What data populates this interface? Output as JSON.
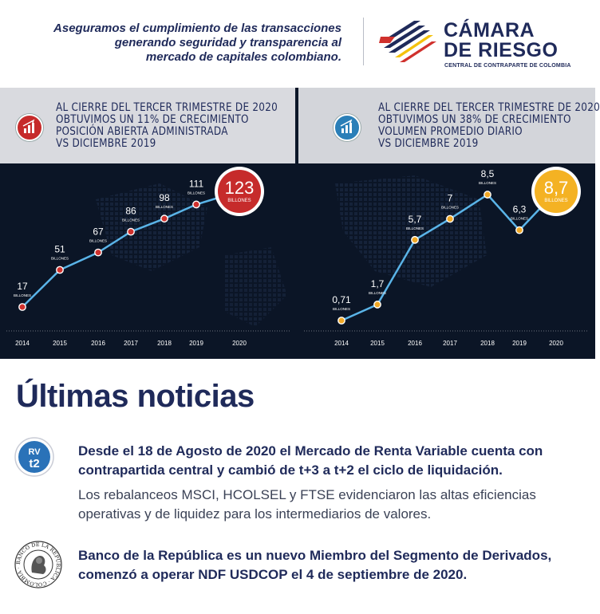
{
  "header": {
    "tagline_lines": [
      "Aseguramos el cumplimiento de las transacciones",
      "generando seguridad y transparencia al",
      "mercado de capitales colombiano."
    ],
    "brand_line1": "CÁMARA",
    "brand_line2": "DE RIESGO",
    "brand_sub": "CENTRAL DE CONTRAPARTE DE COLOMBIA"
  },
  "panels": [
    {
      "lines": [
        "AL CIERRE DEL TERCER TRIMESTRE DE 2020",
        "OBTUVIMOS UN 11% DE CRECIMIENTO",
        "POSICIÓN ABIERTA ADMINISTRADA",
        "VS  DICIEMBRE 2019"
      ],
      "icon": "growth-chart-icon",
      "accent": "#c62b2b"
    },
    {
      "lines": [
        "AL CIERRE DEL TERCER TRIMESTRE DE 2020",
        "OBTUVIMOS UN 38% DE CRECIMIENTO",
        "VOLUMEN PROMEDIO DIARIO",
        "VS  DICIEMBRE 2019"
      ],
      "icon": "growth-chart-icon",
      "accent": "#2a8bbf"
    }
  ],
  "chart_data": [
    {
      "type": "line",
      "x": [
        "2014",
        "2015",
        "2016",
        "2017",
        "2018",
        "2019",
        "2020"
      ],
      "values": [
        17,
        51,
        67,
        86,
        98,
        111,
        123
      ],
      "labels": [
        "17",
        "51",
        "67",
        "86",
        "98",
        "111",
        "123"
      ],
      "unit_label": "BILLONES",
      "point_color": "#d0312d",
      "highlight_color": "#c62b2b"
    },
    {
      "type": "line",
      "x": [
        "2014",
        "2015",
        "2016",
        "2017",
        "2018",
        "2019",
        "2020"
      ],
      "values": [
        0.71,
        1.7,
        5.7,
        7,
        8.5,
        6.3,
        8.7
      ],
      "labels": [
        "0,71",
        "1,7",
        "5,7",
        "7",
        "8,5",
        "6,3",
        "8,7"
      ],
      "unit_label": "BILLONES",
      "point_color": "#f0a826",
      "highlight_color": "#f4b223"
    }
  ],
  "news": {
    "title": "Últimas noticias",
    "rv_icon_top": "RV",
    "rv_icon_bottom": "t2",
    "item1_head": "Desde el 18 de Agosto de 2020 el Mercado de Renta Variable cuenta con contrapartida central y cambió de t+3 a t+2 el ciclo de liquidación.",
    "item1_body": "Los rebalanceos MSCI, HCOLSEL y FTSE evidenciaron las altas eficiencias operativas y de liquidez para los intermediarios de valores.",
    "item2_head": "Banco de la República es un nuevo Miembro del Segmento de Derivados, comenzó a operar NDF USDCOP el 4 de septiembre de 2020.",
    "seal_text": "BANCO DE LA REPÚBLICA · COLOMBIA ·"
  },
  "colors": {
    "navy": "#1f2a5a",
    "red": "#c62b2b",
    "yellow": "#f4b223",
    "line": "#5ab4e8"
  }
}
